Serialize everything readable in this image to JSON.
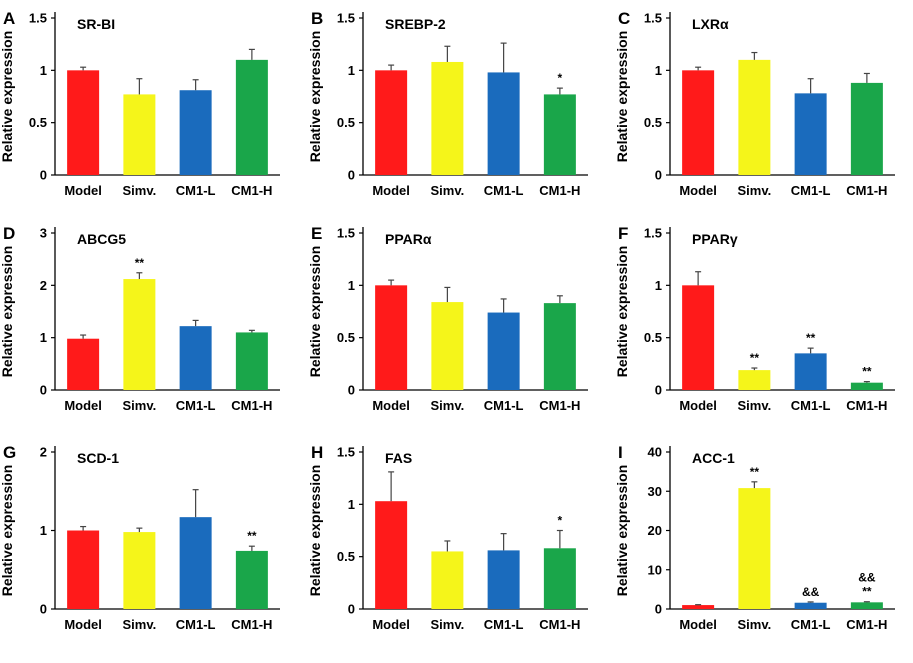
{
  "chart_data": [
    {
      "type": "bar",
      "letter": "A",
      "title": "SR-BI",
      "ylabel": "Relative expression",
      "categories": [
        "Model",
        "Simv.",
        "CM1-L",
        "CM1-H"
      ],
      "ylim": [
        0,
        1.5
      ],
      "yticks": [
        0,
        0.5,
        1,
        1.5
      ],
      "ytick_labels": [
        "0",
        "0.5",
        "1",
        "1.5"
      ],
      "values": [
        1.0,
        0.77,
        0.81,
        1.1
      ],
      "errors": [
        0.03,
        0.15,
        0.1,
        0.1
      ],
      "annotations": [
        "",
        "",
        "",
        ""
      ]
    },
    {
      "type": "bar",
      "letter": "B",
      "title": "SREBP-2",
      "ylabel": "Relative expression",
      "categories": [
        "Model",
        "Simv.",
        "CM1-L",
        "CM1-H"
      ],
      "ylim": [
        0,
        1.5
      ],
      "yticks": [
        0,
        0.5,
        1,
        1.5
      ],
      "ytick_labels": [
        "0",
        "0.5",
        "1",
        "1.5"
      ],
      "values": [
        1.0,
        1.08,
        0.98,
        0.77
      ],
      "errors": [
        0.05,
        0.15,
        0.28,
        0.06
      ],
      "annotations": [
        "",
        "",
        "",
        "*"
      ]
    },
    {
      "type": "bar",
      "letter": "C",
      "title": "LXRα",
      "ylabel": "Relative expression",
      "categories": [
        "Model",
        "Simv.",
        "CM1-L",
        "CM1-H"
      ],
      "ylim": [
        0,
        1.5
      ],
      "yticks": [
        0,
        0.5,
        1,
        1.5
      ],
      "ytick_labels": [
        "0",
        "0.5",
        "1",
        "1.5"
      ],
      "values": [
        1.0,
        1.1,
        0.78,
        0.88
      ],
      "errors": [
        0.03,
        0.07,
        0.14,
        0.09
      ],
      "annotations": [
        "",
        "",
        "",
        ""
      ]
    },
    {
      "type": "bar",
      "letter": "D",
      "title": "ABCG5",
      "ylabel": "Relative expression",
      "categories": [
        "Model",
        "Simv.",
        "CM1-L",
        "CM1-H"
      ],
      "ylim": [
        0,
        3
      ],
      "yticks": [
        0,
        1,
        2,
        3
      ],
      "ytick_labels": [
        "0",
        "1",
        "2",
        "3"
      ],
      "values": [
        0.98,
        2.12,
        1.22,
        1.1
      ],
      "errors": [
        0.07,
        0.12,
        0.11,
        0.04
      ],
      "annotations": [
        "",
        "**",
        "",
        ""
      ]
    },
    {
      "type": "bar",
      "letter": "E",
      "title": "PPARα",
      "ylabel": "Relative expression",
      "categories": [
        "Model",
        "Simv.",
        "CM1-L",
        "CM1-H"
      ],
      "ylim": [
        0,
        1.5
      ],
      "yticks": [
        0,
        0.5,
        1,
        1.5
      ],
      "ytick_labels": [
        "0",
        "0.5",
        "1",
        "1.5"
      ],
      "values": [
        1.0,
        0.84,
        0.74,
        0.83
      ],
      "errors": [
        0.05,
        0.14,
        0.13,
        0.07
      ],
      "annotations": [
        "",
        "",
        "",
        ""
      ]
    },
    {
      "type": "bar",
      "letter": "F",
      "title": "PPARγ",
      "ylabel": "Relative expression",
      "categories": [
        "Model",
        "Simv.",
        "CM1-L",
        "CM1-H"
      ],
      "ylim": [
        0,
        1.5
      ],
      "yticks": [
        0,
        0.5,
        1,
        1.5
      ],
      "ytick_labels": [
        "0",
        "0.5",
        "1",
        "1.5"
      ],
      "values": [
        1.0,
        0.19,
        0.35,
        0.07
      ],
      "errors": [
        0.13,
        0.02,
        0.05,
        0.01
      ],
      "annotations": [
        "",
        "**",
        "**",
        "**"
      ]
    },
    {
      "type": "bar",
      "letter": "G",
      "title": "SCD-1",
      "ylabel": "Relative expression",
      "categories": [
        "Model",
        "Simv.",
        "CM1-L",
        "CM1-H"
      ],
      "ylim": [
        0,
        2
      ],
      "yticks": [
        0,
        1,
        2
      ],
      "ytick_labels": [
        "0",
        "1",
        "2"
      ],
      "values": [
        1.0,
        0.98,
        1.17,
        0.74
      ],
      "errors": [
        0.05,
        0.05,
        0.35,
        0.06
      ],
      "annotations": [
        "",
        "",
        "",
        "**"
      ]
    },
    {
      "type": "bar",
      "letter": "H",
      "title": "FAS",
      "ylabel": "Relative expression",
      "categories": [
        "Model",
        "Simv.",
        "CM1-L",
        "CM1-H"
      ],
      "ylim": [
        0,
        1.5
      ],
      "yticks": [
        0,
        0.5,
        1,
        1.5
      ],
      "ytick_labels": [
        "0",
        "0.5",
        "1",
        "1.5"
      ],
      "values": [
        1.03,
        0.55,
        0.56,
        0.58
      ],
      "errors": [
        0.28,
        0.1,
        0.16,
        0.17
      ],
      "annotations": [
        "",
        "",
        "",
        "*"
      ]
    },
    {
      "type": "bar",
      "letter": "I",
      "title": "ACC-1",
      "ylabel": "Relative expression",
      "categories": [
        "Model",
        "Simv.",
        "CM1-L",
        "CM1-H"
      ],
      "ylim": [
        0,
        40
      ],
      "yticks": [
        0,
        10,
        20,
        30,
        40
      ],
      "ytick_labels": [
        "0",
        "10",
        "20",
        "30",
        "40"
      ],
      "values": [
        1.0,
        30.8,
        1.6,
        1.7
      ],
      "errors": [
        0.1,
        1.6,
        0.2,
        0.15
      ],
      "annotations": [
        "",
        "**",
        "&&",
        "&&\n**"
      ]
    }
  ],
  "colors": {
    "Model": "#ff1a1a",
    "Simv.": "#f5f51a",
    "CM1-L": "#1a6bbd",
    "CM1-H": "#1aa64a",
    "axis": "#000000"
  }
}
